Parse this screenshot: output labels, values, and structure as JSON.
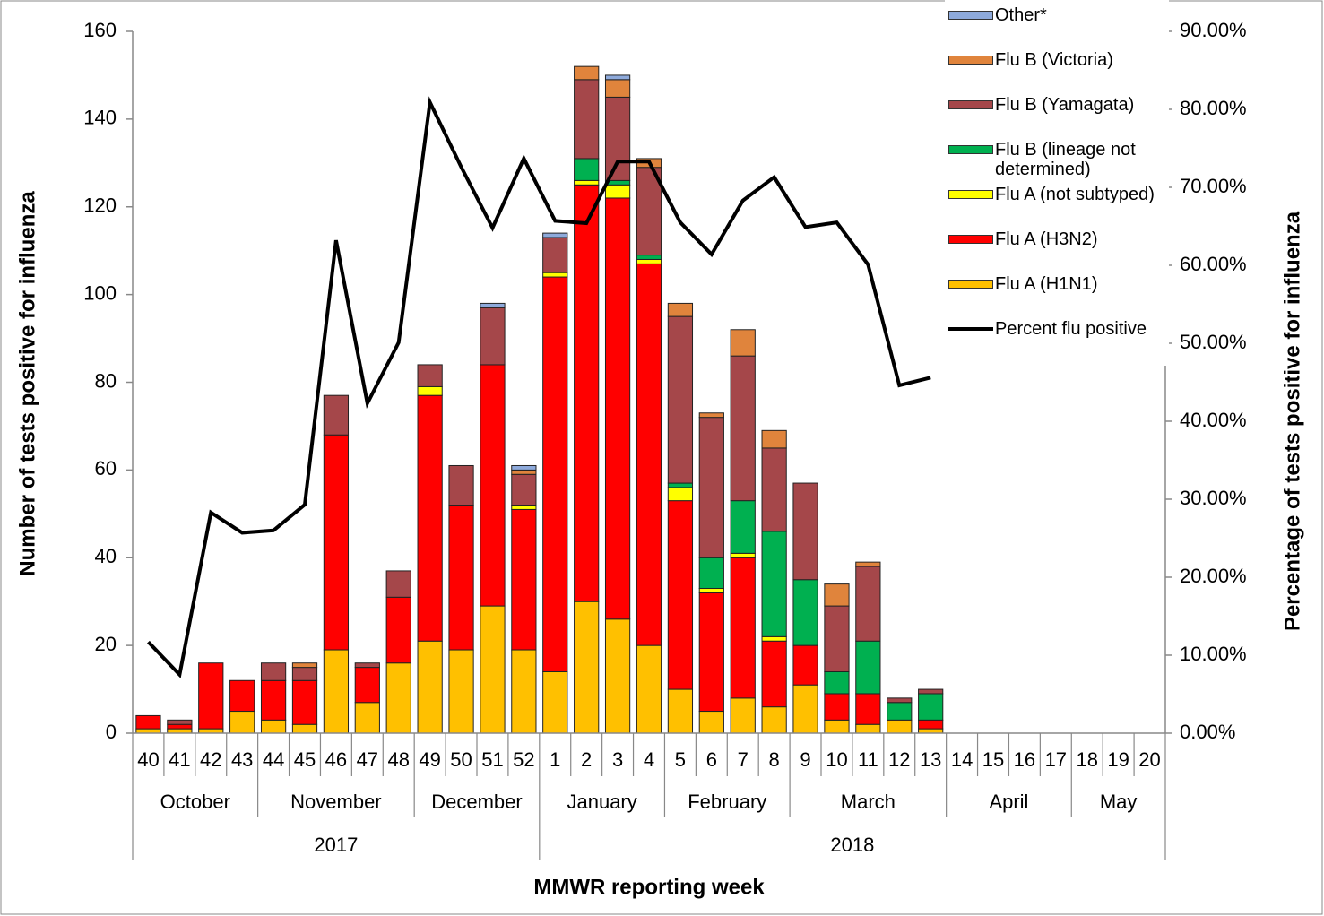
{
  "chart_data": {
    "type": "bar",
    "stacked": true,
    "x_title": "MMWR reporting week",
    "y_title": "Number of tests positive for influenza",
    "y2_title": "Percentage of tests positive for influenza",
    "categories": [
      "40",
      "41",
      "42",
      "43",
      "44",
      "45",
      "46",
      "47",
      "48",
      "49",
      "50",
      "51",
      "52",
      "1",
      "2",
      "3",
      "4",
      "5",
      "6",
      "7",
      "8",
      "9",
      "10",
      "11",
      "12",
      "13",
      "14",
      "15",
      "16",
      "17",
      "18",
      "19",
      "20"
    ],
    "month_groups": [
      {
        "label": "October",
        "count": 4
      },
      {
        "label": "November",
        "count": 5
      },
      {
        "label": "December",
        "count": 4
      },
      {
        "label": "January",
        "count": 4
      },
      {
        "label": "February",
        "count": 4
      },
      {
        "label": "March",
        "count": 5
      },
      {
        "label": "April",
        "count": 4
      },
      {
        "label": "May",
        "count": 3
      }
    ],
    "year_groups": [
      {
        "label": "2017",
        "count": 13
      },
      {
        "label": "2018",
        "count": 20
      }
    ],
    "ylim": [
      0,
      160
    ],
    "yticks": [
      0,
      20,
      40,
      60,
      80,
      100,
      120,
      140,
      160
    ],
    "y2lim": [
      0,
      90
    ],
    "y2ticks": [
      {
        "value": 0,
        "label": "0.00%"
      },
      {
        "value": 10,
        "label": "10.00%"
      },
      {
        "value": 20,
        "label": "20.00%"
      },
      {
        "value": 30,
        "label": "30.00%"
      },
      {
        "value": 40,
        "label": "40.00%"
      },
      {
        "value": 50,
        "label": "50.00%"
      },
      {
        "value": 60,
        "label": "60.00%"
      },
      {
        "value": 70,
        "label": "70.00%"
      },
      {
        "value": 80,
        "label": "80.00%"
      },
      {
        "value": 90,
        "label": "90.00%"
      }
    ],
    "series": [
      {
        "name": "Flu A (H1N1)",
        "color": "#ffc000",
        "values": [
          1,
          1,
          1,
          5,
          3,
          2,
          19,
          7,
          16,
          21,
          19,
          29,
          19,
          14,
          30,
          26,
          20,
          10,
          5,
          8,
          6,
          11,
          3,
          2,
          3,
          1,
          null,
          null,
          null,
          null,
          null,
          null,
          null
        ]
      },
      {
        "name": "Flu A (H3N2)",
        "color": "#ff0000",
        "values": [
          3,
          1,
          15,
          7,
          9,
          10,
          49,
          8,
          15,
          56,
          33,
          55,
          32,
          90,
          95,
          96,
          87,
          43,
          27,
          32,
          15,
          9,
          6,
          7,
          0,
          2,
          null,
          null,
          null,
          null,
          null,
          null,
          null
        ]
      },
      {
        "name": "Flu A (not subtyped)",
        "color": "#ffff00",
        "values": [
          0,
          0,
          0,
          0,
          0,
          0,
          0,
          0,
          0,
          2,
          0,
          0,
          1,
          1,
          1,
          3,
          1,
          3,
          1,
          1,
          1,
          0,
          0,
          0,
          0,
          0,
          null,
          null,
          null,
          null,
          null,
          null,
          null
        ]
      },
      {
        "name": "Flu B (lineage not determined)",
        "color": "#00b050",
        "values": [
          0,
          0,
          0,
          0,
          0,
          0,
          0,
          0,
          0,
          0,
          0,
          0,
          0,
          0,
          5,
          1,
          1,
          1,
          7,
          12,
          24,
          15,
          5,
          12,
          4,
          6,
          null,
          null,
          null,
          null,
          null,
          null,
          null
        ]
      },
      {
        "name": "Flu B (Yamagata)",
        "color": "#a5474a",
        "values": [
          0,
          1,
          0,
          0,
          4,
          3,
          9,
          1,
          6,
          5,
          9,
          13,
          7,
          8,
          18,
          19,
          20,
          38,
          32,
          33,
          19,
          22,
          15,
          17,
          1,
          1,
          null,
          null,
          null,
          null,
          null,
          null,
          null
        ]
      },
      {
        "name": "Flu B (Victoria)",
        "color": "#e0843c",
        "values": [
          0,
          0,
          0,
          0,
          0,
          1,
          0,
          0,
          0,
          0,
          0,
          0,
          1,
          0,
          3,
          4,
          2,
          3,
          1,
          6,
          4,
          0,
          5,
          1,
          0,
          0,
          null,
          null,
          null,
          null,
          null,
          null,
          null
        ]
      },
      {
        "name": "Other*",
        "color": "#8eaadb",
        "values": [
          0,
          0,
          0,
          0,
          0,
          0,
          0,
          0,
          0,
          0,
          0,
          1,
          1,
          1,
          0,
          1,
          0,
          0,
          0,
          0,
          0,
          0,
          0,
          0,
          0,
          0,
          null,
          null,
          null,
          null,
          null,
          null,
          null
        ]
      },
      {
        "name": "Percent flu positive",
        "type": "line",
        "axis": "y2",
        "color": "#000000",
        "values": [
          11.7,
          7.5,
          28.3,
          25.7,
          26.0,
          29.3,
          63.2,
          42.3,
          50.1,
          80.9,
          72.6,
          64.8,
          73.7,
          65.7,
          65.4,
          73.3,
          73.3,
          65.5,
          61.4,
          68.3,
          71.3,
          64.9,
          65.5,
          60.1,
          44.6,
          45.6,
          null,
          null,
          null,
          null,
          null,
          null,
          null
        ]
      }
    ]
  }
}
